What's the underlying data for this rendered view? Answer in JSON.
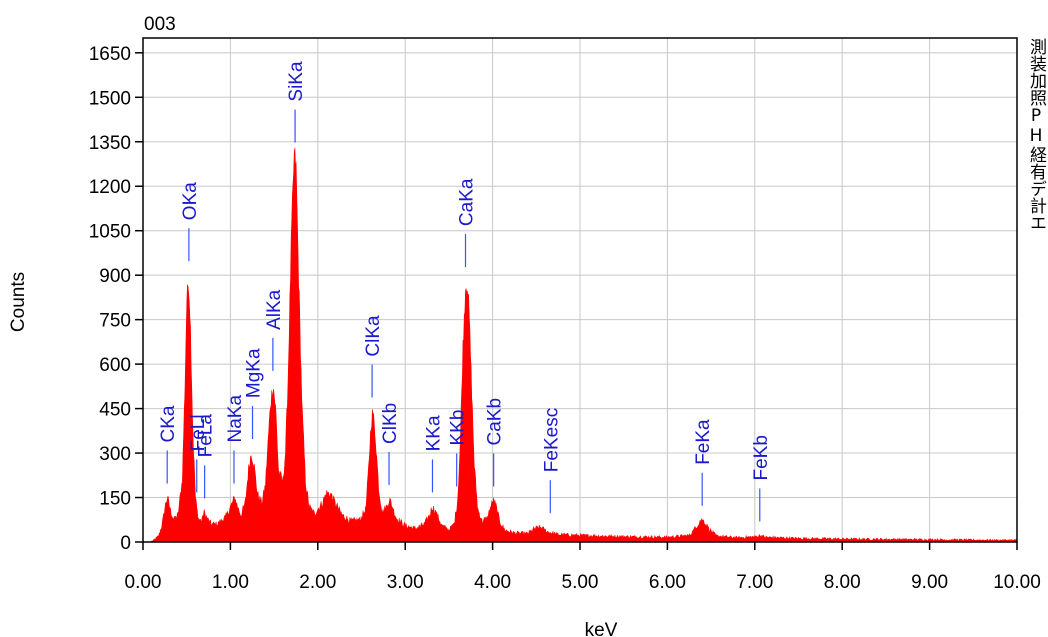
{
  "page": {
    "side_text": "測装加照PH経有デ計エ"
  },
  "chart_data": {
    "type": "area",
    "title": "003",
    "xlabel": "keV",
    "ylabel": "Counts",
    "xlim": [
      0,
      10
    ],
    "ylim": [
      0,
      1700
    ],
    "x_ticks": [
      0,
      1,
      2,
      3,
      4,
      5,
      6,
      7,
      8,
      9,
      10
    ],
    "x_tick_labels": [
      "0.00",
      "1.00",
      "2.00",
      "3.00",
      "4.00",
      "5.00",
      "6.00",
      "7.00",
      "8.00",
      "9.00",
      "10.00"
    ],
    "y_ticks": [
      0,
      150,
      300,
      450,
      600,
      750,
      900,
      1050,
      1200,
      1350,
      1500,
      1650
    ],
    "y_tick_labels": [
      "0",
      "150",
      "300",
      "450",
      "600",
      "750",
      "900",
      "1050",
      "1200",
      "1350",
      "1500",
      "1650"
    ],
    "grid": true,
    "colors": {
      "spectrum": "#ff0000",
      "peak_label": "#1a1acc",
      "grid": "#c8c8c8"
    },
    "series": [
      {
        "values": [
          [
            0.0,
            0
          ],
          [
            0.08,
            0
          ],
          [
            0.12,
            5
          ],
          [
            0.18,
            20
          ],
          [
            0.22,
            60
          ],
          [
            0.26,
            130
          ],
          [
            0.28,
            150
          ],
          [
            0.31,
            110
          ],
          [
            0.35,
            75
          ],
          [
            0.4,
            90
          ],
          [
            0.45,
            210
          ],
          [
            0.48,
            520
          ],
          [
            0.5,
            800
          ],
          [
            0.52,
            890
          ],
          [
            0.54,
            760
          ],
          [
            0.57,
            380
          ],
          [
            0.6,
            150
          ],
          [
            0.63,
            80
          ],
          [
            0.67,
            70
          ],
          [
            0.7,
            100
          ],
          [
            0.73,
            80
          ],
          [
            0.78,
            60
          ],
          [
            0.85,
            60
          ],
          [
            0.95,
            85
          ],
          [
            1.02,
            130
          ],
          [
            1.05,
            150
          ],
          [
            1.08,
            120
          ],
          [
            1.12,
            90
          ],
          [
            1.17,
            130
          ],
          [
            1.21,
            250
          ],
          [
            1.24,
            300
          ],
          [
            1.27,
            260
          ],
          [
            1.31,
            160
          ],
          [
            1.36,
            130
          ],
          [
            1.4,
            190
          ],
          [
            1.43,
            330
          ],
          [
            1.46,
            470
          ],
          [
            1.49,
            530
          ],
          [
            1.52,
            440
          ],
          [
            1.55,
            240
          ],
          [
            1.6,
            200
          ],
          [
            1.63,
            300
          ],
          [
            1.66,
            550
          ],
          [
            1.7,
            1050
          ],
          [
            1.73,
            1300
          ],
          [
            1.75,
            1280
          ],
          [
            1.78,
            900
          ],
          [
            1.82,
            450
          ],
          [
            1.86,
            200
          ],
          [
            1.9,
            120
          ],
          [
            1.96,
            95
          ],
          [
            2.05,
            130
          ],
          [
            2.1,
            165
          ],
          [
            2.15,
            160
          ],
          [
            2.2,
            130
          ],
          [
            2.28,
            90
          ],
          [
            2.38,
            70
          ],
          [
            2.48,
            75
          ],
          [
            2.55,
            110
          ],
          [
            2.58,
            240
          ],
          [
            2.61,
            400
          ],
          [
            2.63,
            440
          ],
          [
            2.66,
            350
          ],
          [
            2.7,
            170
          ],
          [
            2.74,
            100
          ],
          [
            2.79,
            120
          ],
          [
            2.82,
            145
          ],
          [
            2.85,
            120
          ],
          [
            2.9,
            80
          ],
          [
            3.0,
            55
          ],
          [
            3.12,
            45
          ],
          [
            3.22,
            60
          ],
          [
            3.28,
            90
          ],
          [
            3.31,
            120
          ],
          [
            3.35,
            100
          ],
          [
            3.42,
            55
          ],
          [
            3.5,
            40
          ],
          [
            3.56,
            60
          ],
          [
            3.6,
            140
          ],
          [
            3.63,
            330
          ],
          [
            3.66,
            650
          ],
          [
            3.69,
            860
          ],
          [
            3.71,
            880
          ],
          [
            3.73,
            780
          ],
          [
            3.76,
            520
          ],
          [
            3.79,
            260
          ],
          [
            3.83,
            110
          ],
          [
            3.88,
            70
          ],
          [
            3.94,
            80
          ],
          [
            3.98,
            120
          ],
          [
            4.01,
            140
          ],
          [
            4.04,
            120
          ],
          [
            4.08,
            70
          ],
          [
            4.14,
            40
          ],
          [
            4.25,
            30
          ],
          [
            4.4,
            28
          ],
          [
            4.48,
            45
          ],
          [
            4.55,
            50
          ],
          [
            4.62,
            35
          ],
          [
            4.75,
            25
          ],
          [
            5.0,
            22
          ],
          [
            5.5,
            18
          ],
          [
            6.0,
            16
          ],
          [
            6.25,
            22
          ],
          [
            6.33,
            50
          ],
          [
            6.38,
            75
          ],
          [
            6.42,
            70
          ],
          [
            6.48,
            42
          ],
          [
            6.56,
            20
          ],
          [
            6.8,
            14
          ],
          [
            7.02,
            18
          ],
          [
            7.06,
            22
          ],
          [
            7.12,
            16
          ],
          [
            7.5,
            12
          ],
          [
            8.0,
            10
          ],
          [
            9.0,
            8
          ],
          [
            9.8,
            6
          ],
          [
            10.0,
            6
          ]
        ]
      }
    ],
    "peak_labels": [
      {
        "label": "CKa",
        "x": 0.277,
        "y": 150
      },
      {
        "label": "OKa",
        "x": 0.525,
        "y": 900
      },
      {
        "label": "FeLl",
        "x": 0.615,
        "y": 120
      },
      {
        "label": "FeLa",
        "x": 0.705,
        "y": 100
      },
      {
        "label": "NaKa",
        "x": 1.041,
        "y": 150
      },
      {
        "label": "MgKa",
        "x": 1.253,
        "y": 300
      },
      {
        "label": "AlKa",
        "x": 1.486,
        "y": 530
      },
      {
        "label": "SiKa",
        "x": 1.74,
        "y": 1300
      },
      {
        "label": "ClKa",
        "x": 2.621,
        "y": 440
      },
      {
        "label": "ClKb",
        "x": 2.815,
        "y": 145
      },
      {
        "label": "KKa",
        "x": 3.312,
        "y": 120
      },
      {
        "label": "KKb",
        "x": 3.589,
        "y": 140
      },
      {
        "label": "CaKa",
        "x": 3.69,
        "y": 880
      },
      {
        "label": "CaKb",
        "x": 4.012,
        "y": 140
      },
      {
        "label": "FeKesc",
        "x": 4.66,
        "y": 50
      },
      {
        "label": "FeKa",
        "x": 6.398,
        "y": 75
      },
      {
        "label": "FeKb",
        "x": 7.057,
        "y": 22
      }
    ]
  }
}
